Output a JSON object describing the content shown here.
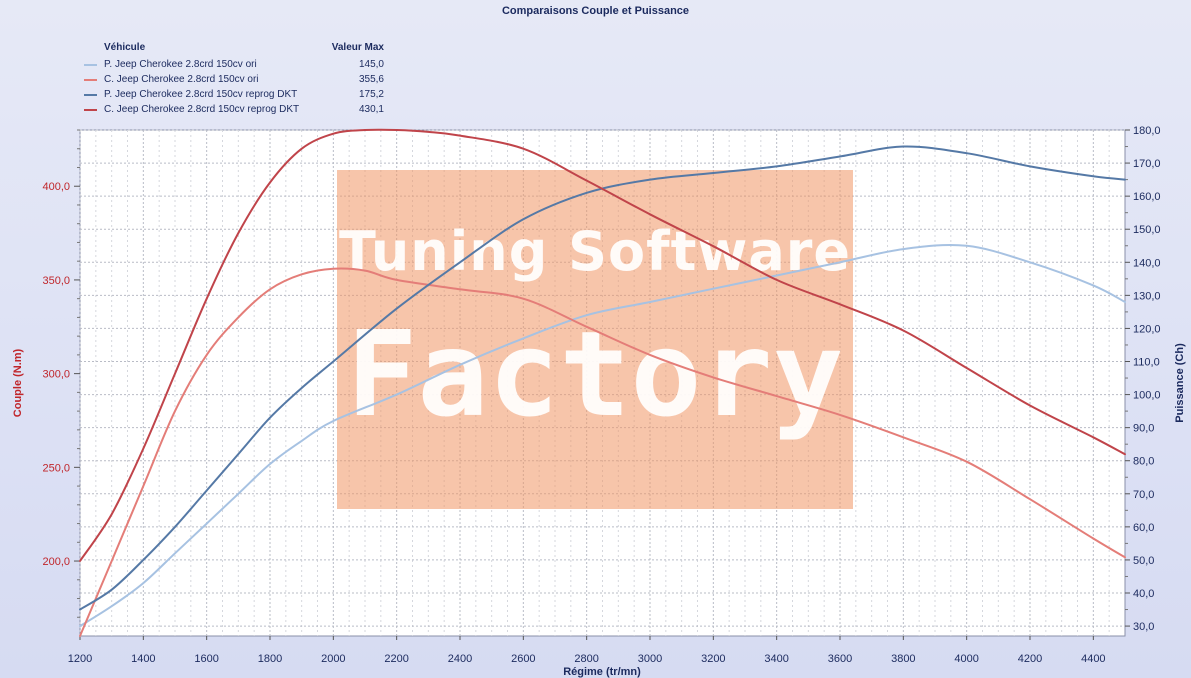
{
  "chart_data": {
    "type": "line",
    "title": "Comparaisons Couple et Puissance",
    "xlabel": "Régime (tr/mn)",
    "ylabel_left": "Couple (N.m)",
    "ylabel_right": "Puissance (Ch)",
    "xlim": [
      1200,
      4500
    ],
    "ylim_left": [
      160,
      430
    ],
    "ylim_right": [
      27,
      180
    ],
    "x_ticks": [
      "1200",
      "1400",
      "1600",
      "1800",
      "2000",
      "2200",
      "2400",
      "2600",
      "2800",
      "3000",
      "3200",
      "3400",
      "3600",
      "3800",
      "4000",
      "4200",
      "4400"
    ],
    "y_left_ticks": [
      {
        "value": 200,
        "label": "200,0"
      },
      {
        "value": 250,
        "label": "250,0"
      },
      {
        "value": 300,
        "label": "300,0"
      },
      {
        "value": 350,
        "label": "350,0"
      },
      {
        "value": 400,
        "label": "400,0"
      }
    ],
    "y_right_ticks": [
      {
        "value": 30,
        "label": "30,0"
      },
      {
        "value": 40,
        "label": "40,0"
      },
      {
        "value": 50,
        "label": "50,0"
      },
      {
        "value": 60,
        "label": "60,0"
      },
      {
        "value": 70,
        "label": "70,0"
      },
      {
        "value": 80,
        "label": "80,0"
      },
      {
        "value": 90,
        "label": "90,0"
      },
      {
        "value": 100,
        "label": "100,0"
      },
      {
        "value": 110,
        "label": "110,0"
      },
      {
        "value": 120,
        "label": "120,0"
      },
      {
        "value": 130,
        "label": "130,0"
      },
      {
        "value": 140,
        "label": "140,0"
      },
      {
        "value": 150,
        "label": "150,0"
      },
      {
        "value": 160,
        "label": "160,0"
      },
      {
        "value": 170,
        "label": "170,0"
      },
      {
        "value": 180,
        "label": "180,0"
      }
    ],
    "grid": true,
    "legend_position": "top-left",
    "legend_header": {
      "vehicle": "Véhicule",
      "max": "Valeur Max"
    },
    "series": [
      {
        "name": "P. Jeep Cherokee 2.8crd 150cv ori",
        "max": "145,0",
        "axis": "right",
        "color": "#a7c2e2",
        "x": [
          1200,
          1300,
          1400,
          1500,
          1600,
          1700,
          1800,
          1900,
          2000,
          2200,
          2400,
          2600,
          2800,
          3000,
          3200,
          3400,
          3600,
          3800,
          4000,
          4200,
          4400,
          4500
        ],
        "y": [
          30,
          36,
          43,
          52,
          61,
          70,
          79,
          86,
          92,
          100,
          109,
          117,
          124,
          128,
          132,
          136,
          140,
          144,
          145,
          140,
          133,
          128
        ]
      },
      {
        "name": "C. Jeep Cherokee 2.8crd 150cv ori",
        "max": "355,6",
        "axis": "left",
        "color": "#e47d78",
        "x": [
          1200,
          1300,
          1400,
          1500,
          1600,
          1700,
          1800,
          1900,
          2000,
          2100,
          2200,
          2400,
          2600,
          2800,
          3000,
          3200,
          3400,
          3600,
          3800,
          4000,
          4200,
          4400,
          4500
        ],
        "y": [
          160,
          200,
          240,
          280,
          310,
          330,
          345,
          353,
          356,
          355,
          350,
          345,
          340,
          325,
          310,
          298,
          288,
          278,
          266,
          253,
          233,
          212,
          202
        ]
      },
      {
        "name": "P. Jeep Cherokee 2.8crd 150cv reprog DKT",
        "max": "175,2",
        "axis": "right",
        "color": "#5579a6",
        "x": [
          1200,
          1300,
          1400,
          1500,
          1600,
          1700,
          1800,
          1900,
          2000,
          2200,
          2400,
          2600,
          2800,
          3000,
          3200,
          3400,
          3600,
          3800,
          4000,
          4200,
          4400,
          4500
        ],
        "y": [
          35,
          41,
          50,
          60,
          71,
          82,
          93,
          102,
          110,
          126,
          140,
          153,
          161,
          165,
          167,
          169,
          172,
          175,
          173,
          169,
          166,
          165
        ]
      },
      {
        "name": "C. Jeep Cherokee 2.8crd 150cv reprog DKT",
        "max": "430,1",
        "axis": "left",
        "color": "#c0444a",
        "x": [
          1200,
          1300,
          1400,
          1500,
          1600,
          1700,
          1800,
          1900,
          2000,
          2100,
          2200,
          2300,
          2400,
          2600,
          2800,
          3000,
          3200,
          3400,
          3600,
          3800,
          4000,
          4200,
          4400,
          4500
        ],
        "y": [
          200,
          225,
          260,
          300,
          340,
          375,
          402,
          420,
          428,
          430,
          430,
          429,
          427,
          420,
          403,
          385,
          368,
          350,
          337,
          323,
          303,
          283,
          266,
          257
        ]
      }
    ]
  },
  "watermark": {
    "line1": "Tuning Software",
    "line2": "Factory",
    "color": "#f09664"
  }
}
